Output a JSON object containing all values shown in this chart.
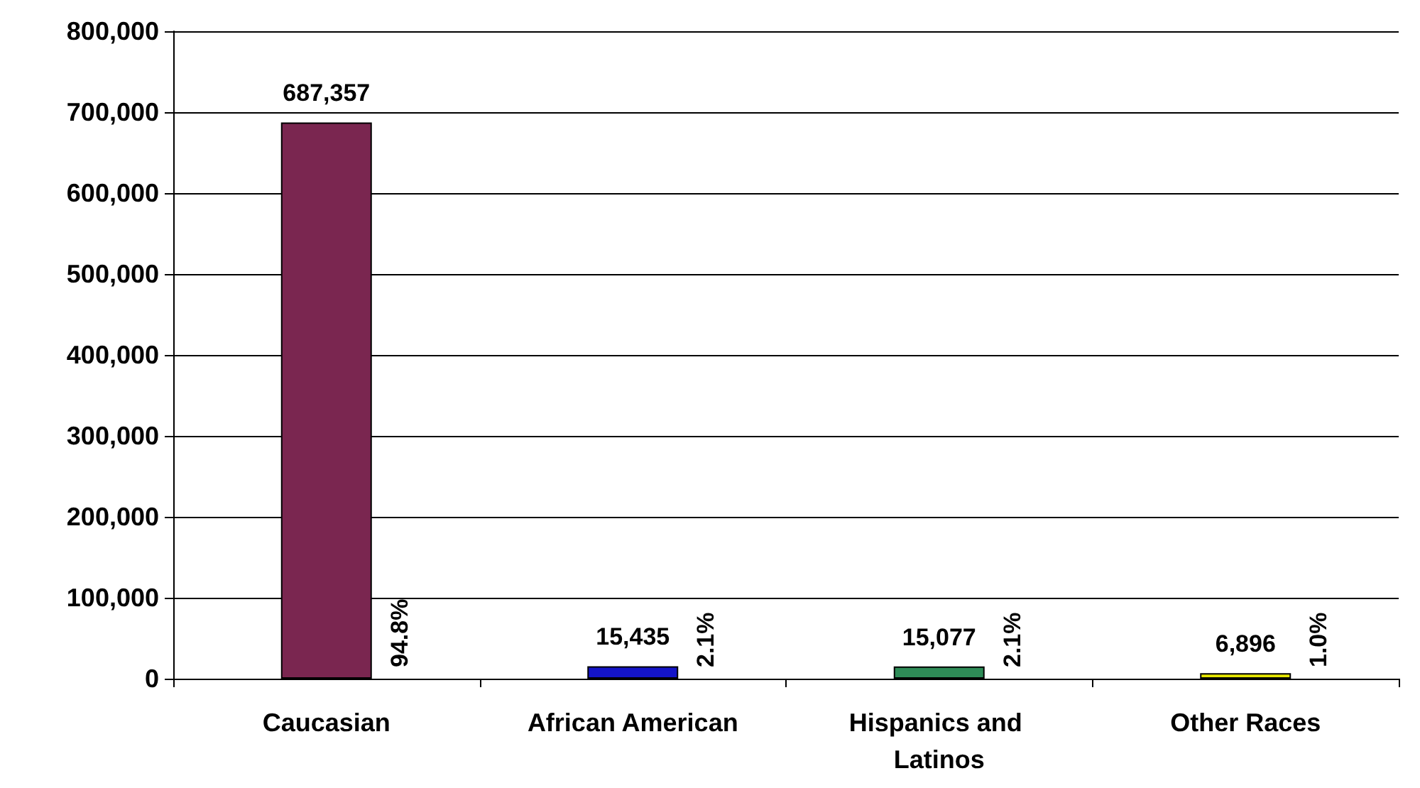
{
  "chart_data": {
    "type": "bar",
    "categories": [
      "Caucasian",
      "African American",
      "Hispanics and Latinos",
      "Other Races"
    ],
    "values": [
      687357,
      15435,
      15077,
      6896
    ],
    "value_labels": [
      "687,357",
      "15,435",
      "15,077",
      "6,896"
    ],
    "colors": [
      "#7a2650",
      "#1414c8",
      "#2e8b57",
      "#e6e600"
    ],
    "ylim": [
      0,
      800000
    ],
    "yticks": [
      {
        "value": 0,
        "label": "0"
      },
      {
        "value": 100000,
        "label": "100,000"
      },
      {
        "value": 200000,
        "label": "200,000"
      },
      {
        "value": 300000,
        "label": "300,000"
      },
      {
        "value": 400000,
        "label": "400,000"
      },
      {
        "value": 500000,
        "label": "500,000"
      },
      {
        "value": 600000,
        "label": "600,000"
      },
      {
        "value": 700000,
        "label": "700,000"
      },
      {
        "value": 800000,
        "label": "800,000"
      }
    ],
    "grid": "y",
    "annotations": [
      {
        "text": "94.8%",
        "x": "Caucasian",
        "y": 0
      },
      {
        "text": "2.1%",
        "x": "African American",
        "y": 0
      },
      {
        "text": "2.1%",
        "x": "Hispanics and Latinos",
        "y": 0
      },
      {
        "text": "1.0%",
        "x": "Other Races",
        "y": 0
      }
    ]
  }
}
